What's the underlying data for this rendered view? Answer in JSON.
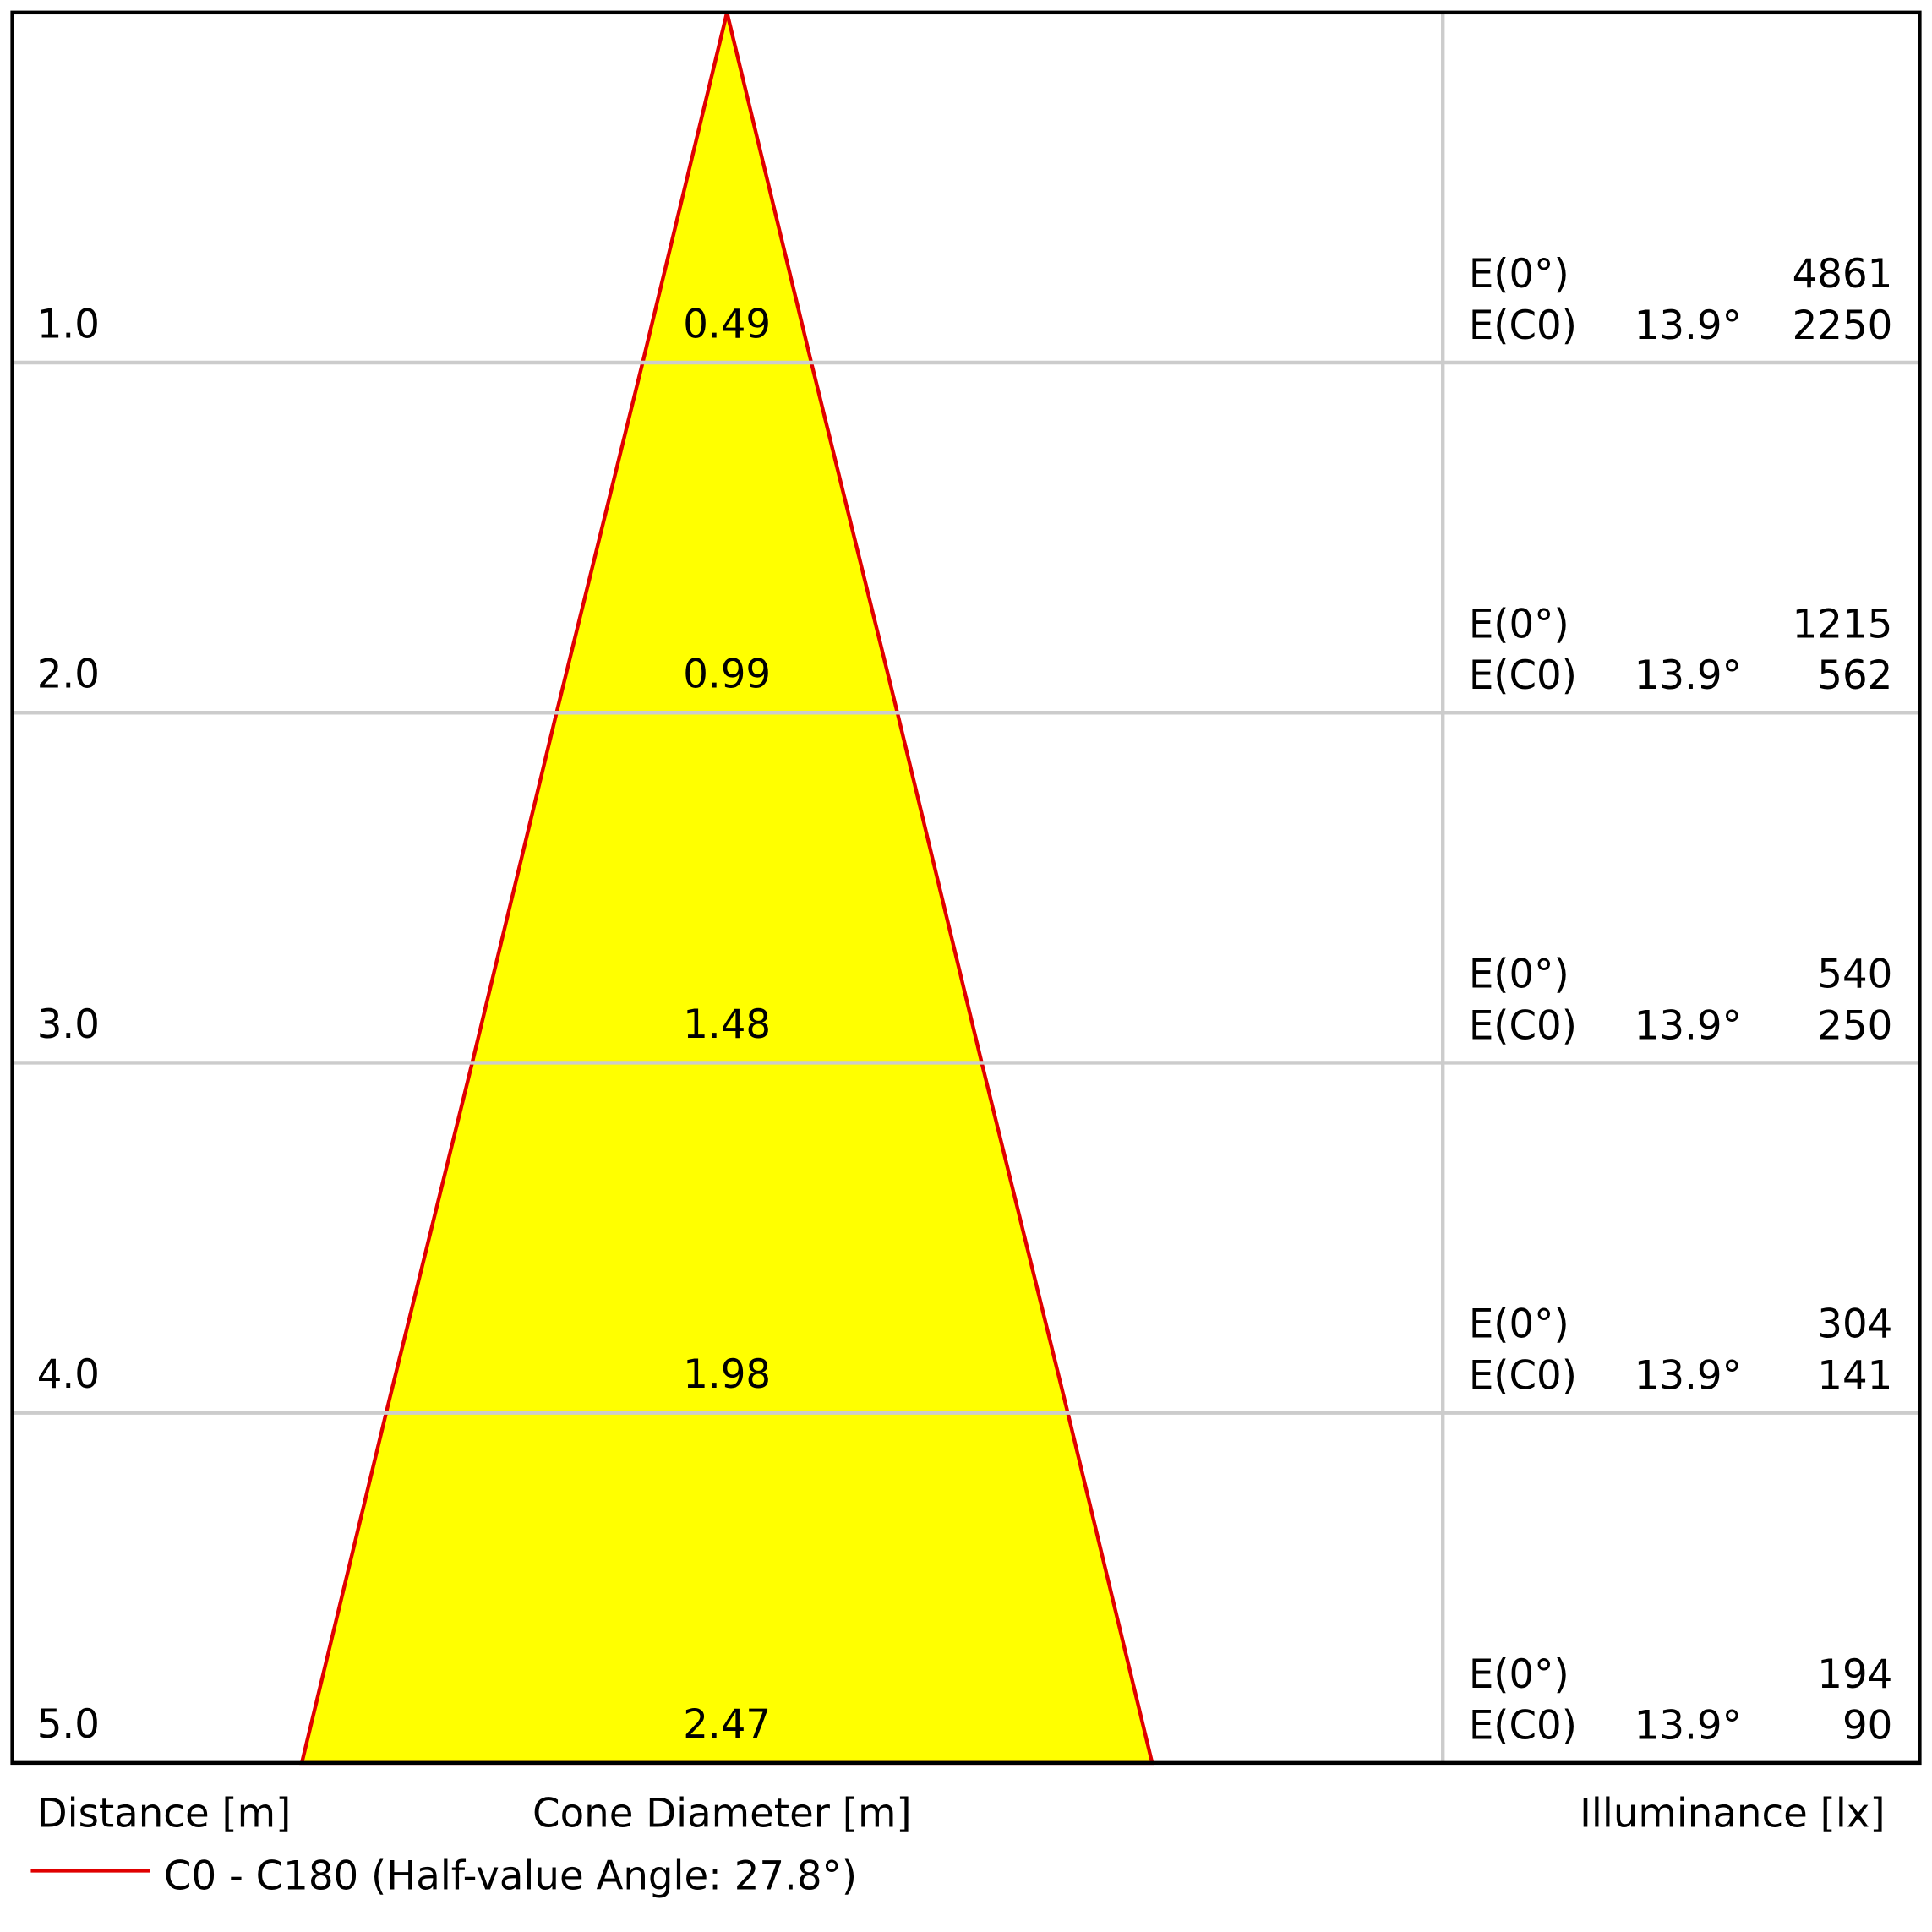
{
  "chart_data": {
    "type": "cone",
    "axis_labels": {
      "distance": "Distance [m]",
      "diameter": "Cone Diameter [m]",
      "illuminance": "Illuminance [lx]"
    },
    "legend": {
      "name": "C0 - C180 (Half-value Angle: 27.8°)",
      "color": "#e00000"
    },
    "fill_color": "#ffff00",
    "ylim": [
      0,
      5
    ],
    "row_labels": {
      "e0": "E(0°)",
      "ec0": "E(C0)"
    },
    "rows": [
      {
        "distance": {
          "value": 1,
          "label": "1.0"
        },
        "diameter": 0.49,
        "e0": 4861,
        "ec0_angle": "13.9°",
        "ec0": 2250
      },
      {
        "distance": {
          "value": 2,
          "label": "2.0"
        },
        "diameter": 0.99,
        "e0": 1215,
        "ec0_angle": "13.9°",
        "ec0": 562
      },
      {
        "distance": {
          "value": 3,
          "label": "3.0"
        },
        "diameter": 1.48,
        "e0": 540,
        "ec0_angle": "13.9°",
        "ec0": 250
      },
      {
        "distance": {
          "value": 4,
          "label": "4.0"
        },
        "diameter": 1.98,
        "e0": 304,
        "ec0_angle": "13.9°",
        "ec0": 141
      },
      {
        "distance": {
          "value": 5,
          "label": "5.0"
        },
        "diameter": 2.47,
        "e0": 194,
        "ec0_angle": "13.9°",
        "ec0": 90
      }
    ]
  }
}
